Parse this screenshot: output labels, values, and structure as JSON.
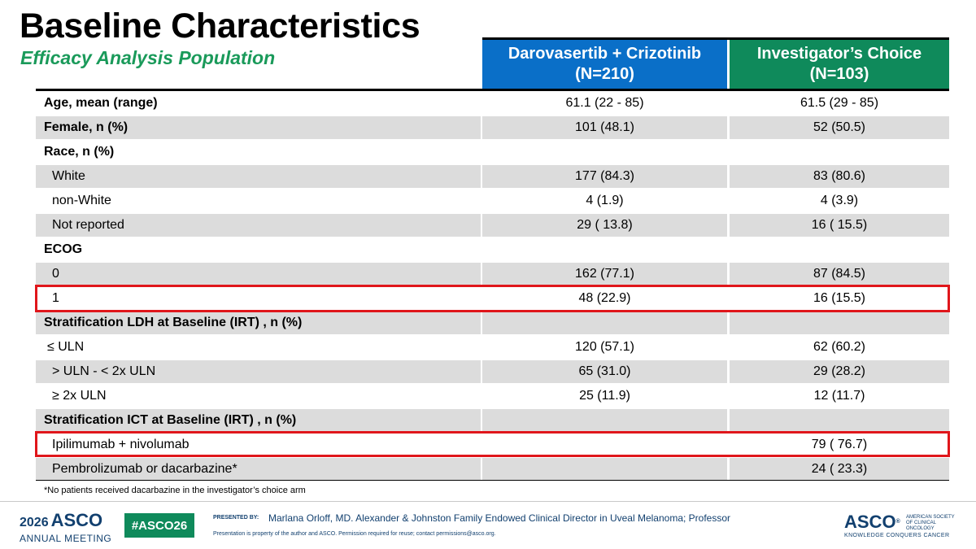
{
  "title": "Baseline Characteristics",
  "subtitle": "Efficacy Analysis Population",
  "columns": {
    "dc_line1": "Darovasertib + Crizotinib",
    "dc_line2": "(N=210)",
    "ic_line1": "Investigator’s Choice",
    "ic_line2": "(N=103)"
  },
  "rows": [
    {
      "label": "Age, mean (range)",
      "dc": "61.1 (22 - 85)",
      "ic": "61.5 (29 - 85)"
    },
    {
      "label": "Female, n (%)",
      "dc": "101 (48.1)",
      "ic": "52 (50.5)"
    },
    {
      "label": "Race, n (%)",
      "dc": "",
      "ic": ""
    },
    {
      "label": "White",
      "dc": "177 (84.3)",
      "ic": "83 (80.6)"
    },
    {
      "label": "non-White",
      "dc": "4 (1.9)",
      "ic": "4 (3.9)"
    },
    {
      "label": "Not reported",
      "dc": "29 ( 13.8)",
      "ic": "16 ( 15.5)"
    },
    {
      "label": "ECOG",
      "dc": "",
      "ic": ""
    },
    {
      "label": "0",
      "dc": "162 (77.1)",
      "ic": "87 (84.5)"
    },
    {
      "label": "1",
      "dc": "48 (22.9)",
      "ic": "16 (15.5)"
    },
    {
      "label": "Stratification LDH at Baseline (IRT) , n (%)",
      "dc": "",
      "ic": ""
    },
    {
      "label": "≤ ULN",
      "dc": "120 (57.1)",
      "ic": "62 (60.2)"
    },
    {
      "label": "> ULN - < 2x ULN",
      "dc": "65 (31.0)",
      "ic": "29 (28.2)"
    },
    {
      "label": "≥ 2x ULN",
      "dc": "25 (11.9)",
      "ic": "12 (11.7)"
    },
    {
      "label": "Stratification ICT at Baseline (IRT) , n (%)",
      "dc": "",
      "ic": ""
    },
    {
      "label": "Ipilimumab + nivolumab",
      "dc": "",
      "ic": "79 ( 76.7)"
    },
    {
      "label": "Pembrolizumab or dacarbazine*",
      "dc": "",
      "ic": "24 ( 23.3)"
    }
  ],
  "footnote": "*No patients received dacarbazine in the investigator’s choice arm",
  "footer": {
    "meeting_year": "2026",
    "meeting_brand": "ASCO",
    "meeting_name": "ANNUAL MEETING",
    "hashtag": "#ASCO26",
    "presented_by_label": "PRESENTED BY:",
    "presenter": "Marlana Orloff, MD. Alexander & Johnston Family Endowed Clinical Director in Uveal Melanoma; Professor",
    "property_notice": "Presentation is property of the author and ASCO. Permission required for reuse; contact permissions@asco.org.",
    "org_brand": "ASCO",
    "org_name": "AMERICAN SOCIETY OF CLINICAL ONCOLOGY",
    "org_tagline": "KNOWLEDGE CONQUERS CANCER"
  },
  "colors": {
    "dc_header": "#0a6fc8",
    "ic_header": "#0f8a5b",
    "subtitle": "#1a9a5a",
    "highlight_box": "#e0161b",
    "row_shade": "#dcdcdc"
  }
}
